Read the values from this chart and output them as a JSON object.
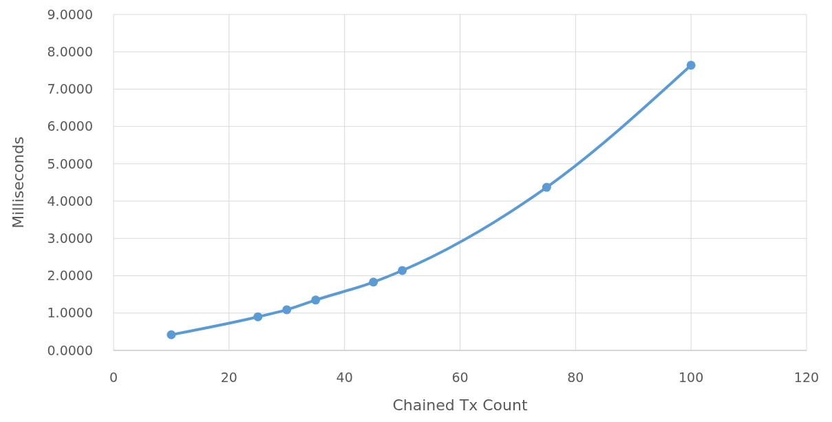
{
  "chart_data": {
    "type": "line",
    "xlabel": "Chained Tx Count",
    "ylabel": "Milliseconds",
    "x": [
      10,
      25,
      30,
      35,
      45,
      50,
      75,
      100
    ],
    "series": [
      {
        "color": "#5b9bd5",
        "values": [
          0.42,
          0.9,
          1.09,
          1.35,
          1.83,
          2.14,
          4.37,
          7.64
        ]
      }
    ],
    "xlim": [
      0,
      120
    ],
    "xticks": [
      0,
      20,
      40,
      60,
      80,
      100,
      120
    ],
    "ylim": [
      0,
      9
    ],
    "yticks": [
      {
        "value": 0,
        "label": "0.0000"
      },
      {
        "value": 1,
        "label": "1.0000"
      },
      {
        "value": 2,
        "label": "2.0000"
      },
      {
        "value": 3,
        "label": "3.0000"
      },
      {
        "value": 4,
        "label": "4.0000"
      },
      {
        "value": 5,
        "label": "5.0000"
      },
      {
        "value": 6,
        "label": "6.0000"
      },
      {
        "value": 7,
        "label": "7.0000"
      },
      {
        "value": 8,
        "label": "8.0000"
      },
      {
        "value": 9,
        "label": "9.0000"
      }
    ],
    "grid": true,
    "marker": "circle",
    "line_style": "solid"
  }
}
